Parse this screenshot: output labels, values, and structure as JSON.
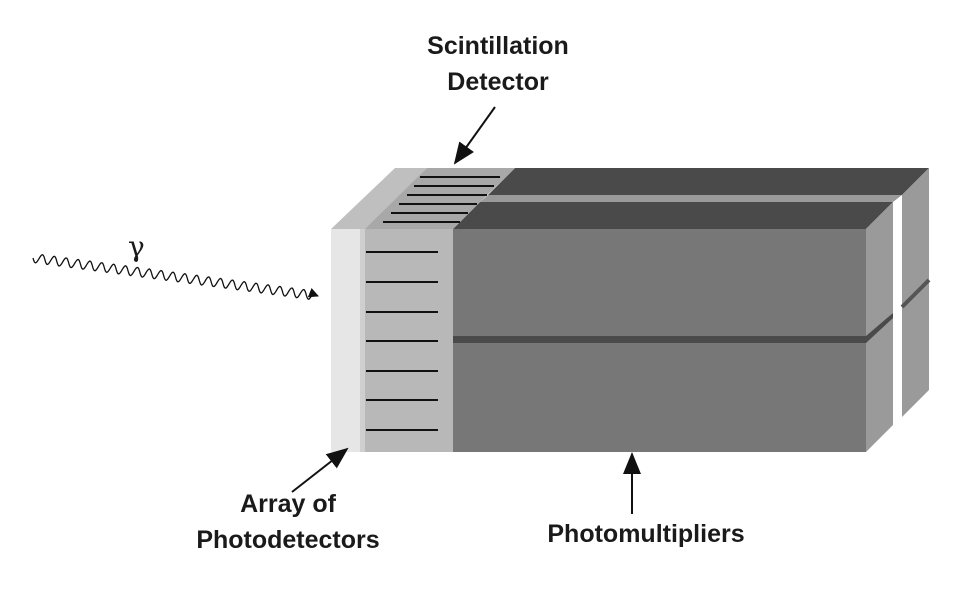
{
  "labels": {
    "scintillation_line1": "Scintillation",
    "scintillation_line2": "Detector",
    "array_line1": "Array of",
    "array_line2": "Photodetectors",
    "photomultipliers": "Photomultipliers",
    "gamma": "γ"
  },
  "colors": {
    "pmt_front": "#777777",
    "pmt_top": "#4a4a4a",
    "pmt_side": "#9a9a9a",
    "scintillator_front": "#b8b8b8",
    "scintillator_top": "#a8a8a8",
    "photodetector_front": "#e6e6e6",
    "photodetector_top": "#bfbfbf",
    "lines": "#111111"
  }
}
